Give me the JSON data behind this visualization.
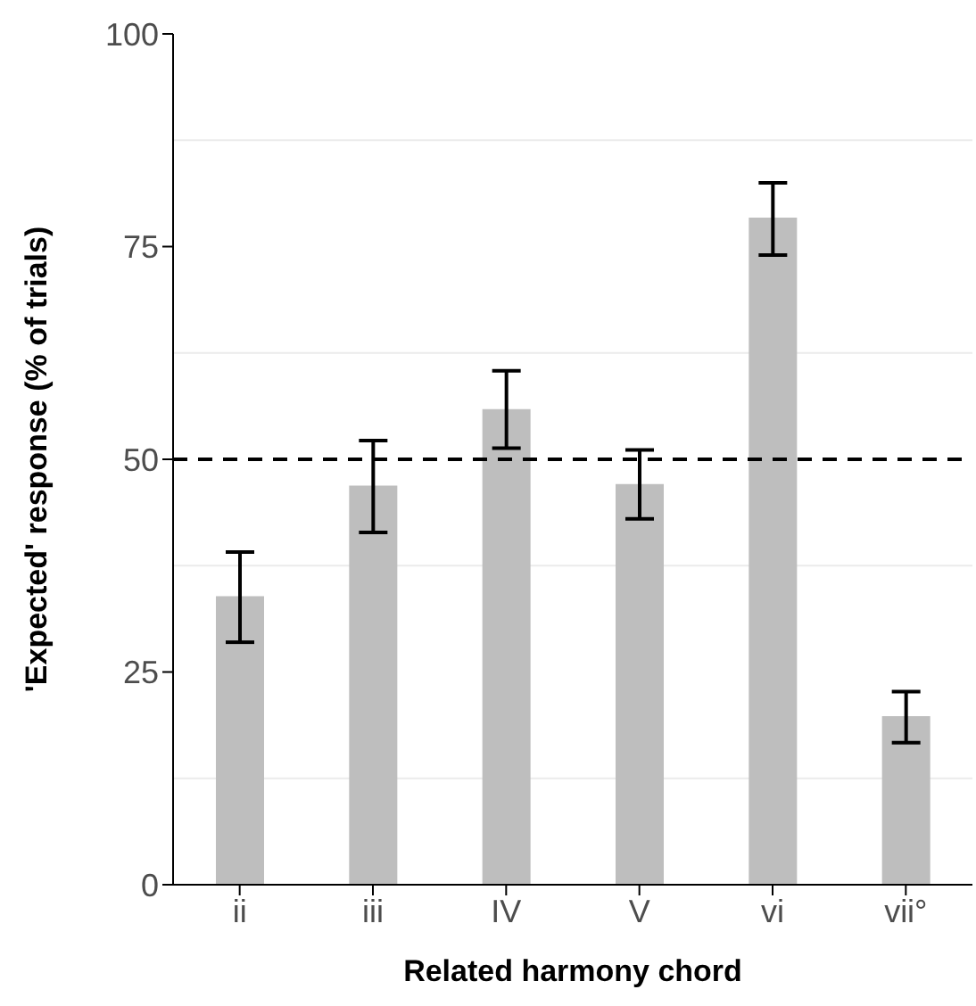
{
  "chart_data": {
    "type": "bar",
    "xlabel": "Related harmony chord",
    "ylabel": "'Expected' response (% of trials)",
    "categories": [
      "ii",
      "iii",
      "IV",
      "V",
      "vi",
      "vii°"
    ],
    "values": [
      33.9,
      46.9,
      55.9,
      47.1,
      78.4,
      19.8
    ],
    "errors": [
      [
        28.5,
        39.1
      ],
      [
        41.4,
        52.2
      ],
      [
        51.3,
        60.4
      ],
      [
        43.0,
        51.1
      ],
      [
        74.0,
        82.5
      ],
      [
        16.7,
        22.7
      ]
    ],
    "color": "#bebebe",
    "ylim": [
      0,
      100
    ],
    "yticks": [
      0,
      25,
      50,
      75,
      100
    ],
    "grid": "y",
    "ref_lines": [
      {
        "axis": "y",
        "value": 50,
        "color": "#000000",
        "line_style": "dashed"
      }
    ]
  }
}
